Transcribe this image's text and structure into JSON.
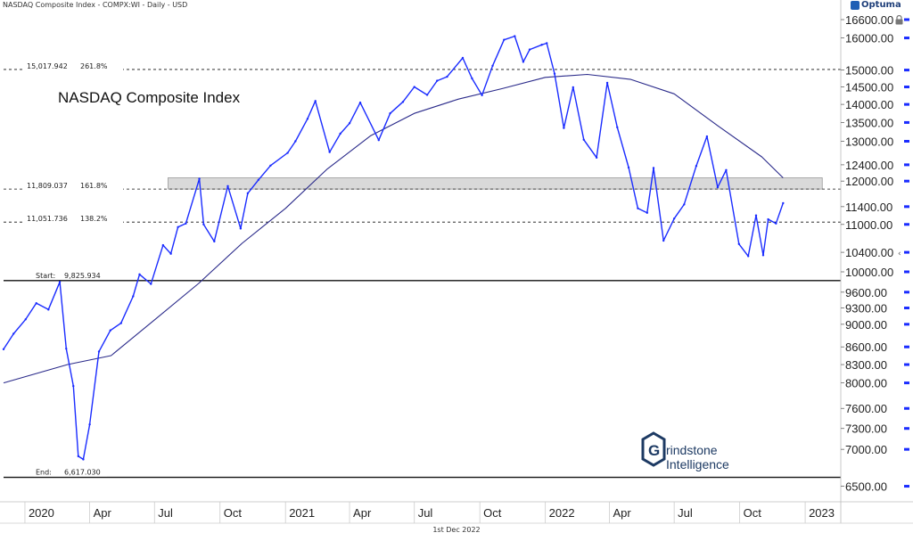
{
  "header": {
    "instrument": "NASDAQ Composite Index - COMPX:WI - Daily - USD",
    "brand": "Optuma",
    "date": "1st Dec 2022"
  },
  "colors": {
    "price": "#1a2cff",
    "moving_average": "#2a2a8a",
    "band": "#d9d9d9",
    "axis_text": "#222222"
  },
  "logo": {
    "line1": "rindstone",
    "line2": "Intelligence",
    "mark": "G"
  },
  "chart_data": {
    "type": "line",
    "title": "NASDAQ Composite Index",
    "y_scale": "log",
    "ylim": [
      6300,
      16900
    ],
    "x_range": [
      "2019-12-02",
      "2023-02-20"
    ],
    "x_tick_labels": [
      {
        "date": "2020-01-01",
        "label": "2020"
      },
      {
        "date": "2020-04-01",
        "label": "Apr"
      },
      {
        "date": "2020-07-01",
        "label": "Jul"
      },
      {
        "date": "2020-10-01",
        "label": "Oct"
      },
      {
        "date": "2021-01-01",
        "label": "2021"
      },
      {
        "date": "2021-04-01",
        "label": "Apr"
      },
      {
        "date": "2021-07-01",
        "label": "Jul"
      },
      {
        "date": "2021-10-01",
        "label": "Oct"
      },
      {
        "date": "2022-01-01",
        "label": "2022"
      },
      {
        "date": "2022-04-01",
        "label": "Apr"
      },
      {
        "date": "2022-07-01",
        "label": "Jul"
      },
      {
        "date": "2022-10-01",
        "label": "Oct"
      },
      {
        "date": "2023-01-01",
        "label": "2023"
      }
    ],
    "y_tick_labels": [
      {
        "value": 16600,
        "label": "16600.00"
      },
      {
        "value": 16000,
        "label": "16000.00"
      },
      {
        "value": 15000,
        "label": "15000.00"
      },
      {
        "value": 14500,
        "label": "14500.00"
      },
      {
        "value": 14000,
        "label": "14000.00"
      },
      {
        "value": 13500,
        "label": "13500.00"
      },
      {
        "value": 13000,
        "label": "13000.00"
      },
      {
        "value": 12400,
        "label": "12400.00"
      },
      {
        "value": 12000,
        "label": "12000.00"
      },
      {
        "value": 11400,
        "label": "11400.00"
      },
      {
        "value": 11000,
        "label": "11000.00"
      },
      {
        "value": 10400,
        "label": "10400.00"
      },
      {
        "value": 10000,
        "label": "10000.00"
      },
      {
        "value": 9600,
        "label": "9600.00"
      },
      {
        "value": 9300,
        "label": "9300.00"
      },
      {
        "value": 9000,
        "label": "9000.00"
      },
      {
        "value": 8600,
        "label": "8600.00"
      },
      {
        "value": 8300,
        "label": "8300.00"
      },
      {
        "value": 8000,
        "label": "8000.00"
      },
      {
        "value": 7600,
        "label": "7600.00"
      },
      {
        "value": 7300,
        "label": "7300.00"
      },
      {
        "value": 7000,
        "label": "7000.00"
      },
      {
        "value": 6500,
        "label": "6500.00"
      }
    ],
    "levels": [
      {
        "name": "fib-261-8",
        "value": 15017.942,
        "label": "15,017.942",
        "ratio": "261.8%",
        "style": "dashed"
      },
      {
        "name": "fib-161-8",
        "value": 11809.037,
        "label": "11,809.037",
        "ratio": "161.8%",
        "style": "dashed"
      },
      {
        "name": "fib-138-2",
        "value": 11051.736,
        "label": "11,051.736",
        "ratio": "138.2%",
        "style": "dashed"
      },
      {
        "name": "start",
        "value": 9825.934,
        "label": "9,825.934",
        "ratio": "Start:",
        "style": "solid"
      },
      {
        "name": "end",
        "value": 6617.03,
        "label": "6,617.030",
        "ratio": "End:",
        "style": "solid"
      }
    ],
    "resistance_band": {
      "from": "2020-07-20",
      "to": "2023-01-25",
      "low": 11809,
      "high": 12080
    },
    "series": [
      {
        "name": "price",
        "x": [
          "2019-12-02",
          "2019-12-16",
          "2020-01-02",
          "2020-01-17",
          "2020-02-03",
          "2020-02-19",
          "2020-02-28",
          "2020-03-09",
          "2020-03-16",
          "2020-03-23",
          "2020-04-01",
          "2020-04-14",
          "2020-04-30",
          "2020-05-15",
          "2020-06-01",
          "2020-06-10",
          "2020-06-26",
          "2020-07-13",
          "2020-07-24",
          "2020-08-03",
          "2020-08-14",
          "2020-09-02",
          "2020-09-08",
          "2020-09-23",
          "2020-10-12",
          "2020-10-30",
          "2020-11-09",
          "2020-11-24",
          "2020-12-11",
          "2021-01-04",
          "2021-01-15",
          "2021-02-01",
          "2021-02-12",
          "2021-03-04",
          "2021-03-19",
          "2021-04-01",
          "2021-04-16",
          "2021-05-12",
          "2021-05-28",
          "2021-06-15",
          "2021-07-01",
          "2021-07-19",
          "2021-08-02",
          "2021-08-16",
          "2021-09-07",
          "2021-09-20",
          "2021-10-04",
          "2021-10-19",
          "2021-11-04",
          "2021-11-19",
          "2021-12-01",
          "2021-12-10",
          "2021-12-27",
          "2022-01-03",
          "2022-01-14",
          "2022-01-27",
          "2022-02-09",
          "2022-02-24",
          "2022-03-14",
          "2022-03-29",
          "2022-04-12",
          "2022-04-28",
          "2022-05-11",
          "2022-05-24",
          "2022-06-02",
          "2022-06-16",
          "2022-07-01",
          "2022-07-15",
          "2022-08-01",
          "2022-08-16",
          "2022-08-31",
          "2022-09-12",
          "2022-09-30",
          "2022-10-13",
          "2022-10-24",
          "2022-11-03",
          "2022-11-10",
          "2022-11-21",
          "2022-12-01"
        ],
        "values": [
          8560,
          8830,
          9090,
          9390,
          9270,
          9800,
          8570,
          7950,
          6904,
          6860,
          7360,
          8520,
          8890,
          9020,
          9520,
          9950,
          9760,
          10550,
          10370,
          10940,
          11020,
          12056,
          11000,
          10630,
          11880,
          10910,
          11710,
          12030,
          12380,
          12700,
          13000,
          13600,
          14095,
          12720,
          13200,
          13480,
          14050,
          13030,
          13750,
          14070,
          14500,
          14270,
          14680,
          14800,
          15370,
          14750,
          14260,
          15130,
          15940,
          16057,
          15250,
          15630,
          15781,
          15832,
          14890,
          13350,
          14490,
          13040,
          12580,
          14620,
          13370,
          12330,
          11360,
          11260,
          12320,
          10646,
          11130,
          11450,
          12370,
          13128,
          11850,
          12270,
          10575,
          10320,
          11200,
          10340,
          11114,
          11020,
          11480
        ]
      },
      {
        "name": "moving-average",
        "x": [
          "2019-12-02",
          "2020-03-01",
          "2020-05-01",
          "2020-07-01",
          "2020-09-01",
          "2020-11-01",
          "2021-01-01",
          "2021-03-01",
          "2021-05-01",
          "2021-07-01",
          "2021-09-01",
          "2021-11-01",
          "2022-01-01",
          "2022-03-01",
          "2022-05-01",
          "2022-07-01",
          "2022-09-01",
          "2022-11-01",
          "2022-12-01"
        ],
        "values": [
          8000,
          8300,
          8450,
          9080,
          9770,
          10590,
          11360,
          12300,
          13150,
          13750,
          14150,
          14450,
          14780,
          14870,
          14720,
          14300,
          13400,
          12600,
          12080
        ]
      }
    ]
  }
}
